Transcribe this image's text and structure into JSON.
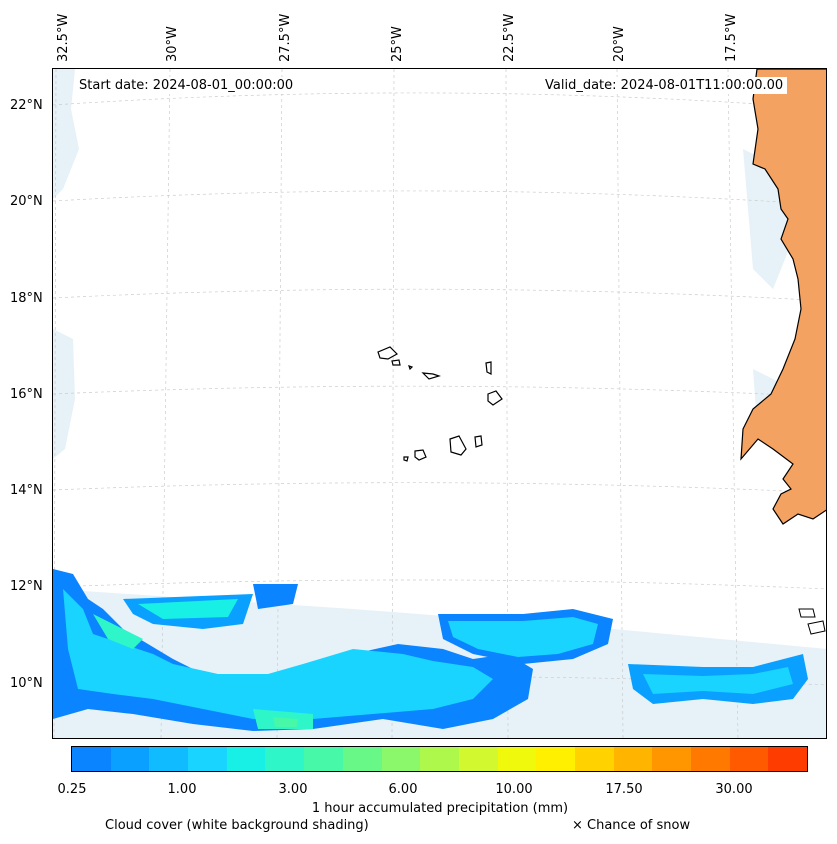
{
  "map": {
    "start_date": "Start date: 2024-08-01_00:00:00",
    "valid_date": "Valid_date: 2024-08-01T11:00:00.00",
    "lon_labels": [
      "32.5°W",
      "30°W",
      "27.5°W",
      "25°W",
      "22.5°W",
      "20°W",
      "17.5°W"
    ],
    "lat_labels": [
      "22°N",
      "20°N",
      "18°N",
      "16°N",
      "14°N",
      "12°N",
      "10°N"
    ],
    "colors": {
      "land": "#f4a261",
      "coastline": "#000000",
      "grid": "#cccccc",
      "cloud_shading": "#d6eaf2"
    }
  },
  "colorbar": {
    "title": "1 hour accumulated precipitation (mm)",
    "tick_labels": [
      "0.25",
      "1.00",
      "3.00",
      "6.00",
      "10.00",
      "17.50",
      "30.00"
    ],
    "colors": [
      "#0a84ff",
      "#0aa0ff",
      "#10bcff",
      "#18d4ff",
      "#18f0e6",
      "#2ef6c8",
      "#46f8a8",
      "#68f888",
      "#8af86a",
      "#aef84c",
      "#d2f830",
      "#f0f80c",
      "#fff000",
      "#ffd200",
      "#ffb400",
      "#ff9600",
      "#ff7800",
      "#ff5a00",
      "#ff3c00"
    ]
  },
  "notes": {
    "cloud_cover": "Cloud cover (white background shading)",
    "snow": "× Chance of snow"
  }
}
